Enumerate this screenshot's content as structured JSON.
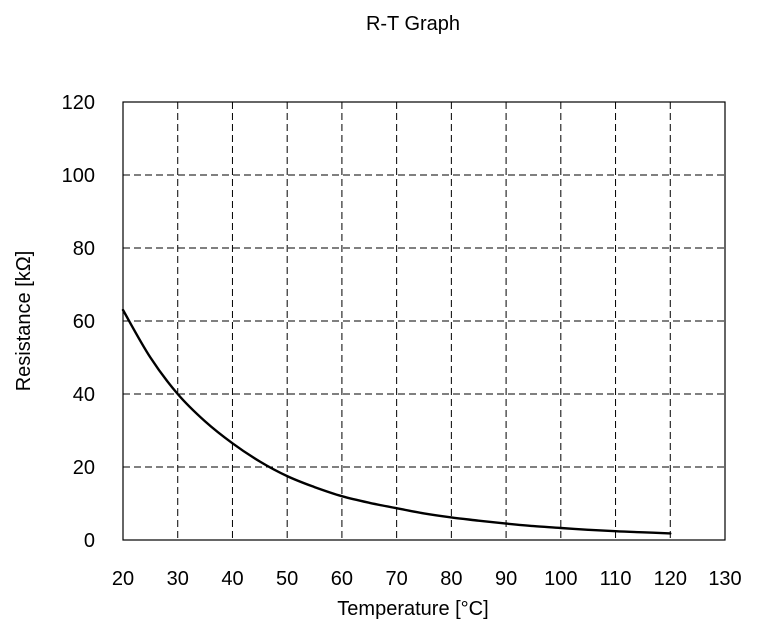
{
  "chart_data": {
    "type": "line",
    "title": "R-T Graph",
    "xlabel": "Temperature [°C]",
    "ylabel": "Resistance [kΩ]",
    "xlim": [
      20,
      130
    ],
    "ylim": [
      0,
      120
    ],
    "xticks": [
      20,
      30,
      40,
      50,
      60,
      70,
      80,
      90,
      100,
      110,
      120,
      130
    ],
    "yticks": [
      0,
      20,
      40,
      60,
      80,
      100,
      120
    ],
    "grid": true,
    "grid_style": "dashed",
    "series": [
      {
        "color": "#000000",
        "x": [
          20,
          25,
          30,
          35,
          40,
          45,
          50,
          55,
          60,
          65,
          70,
          75,
          80,
          85,
          90,
          95,
          100,
          105,
          110,
          115,
          120
        ],
        "y": [
          63,
          50,
          40,
          32.5,
          26.5,
          21.5,
          17.5,
          14.5,
          12,
          10.2,
          8.7,
          7.3,
          6.2,
          5.3,
          4.5,
          3.8,
          3.3,
          2.8,
          2.4,
          2.1,
          1.8
        ]
      }
    ]
  }
}
